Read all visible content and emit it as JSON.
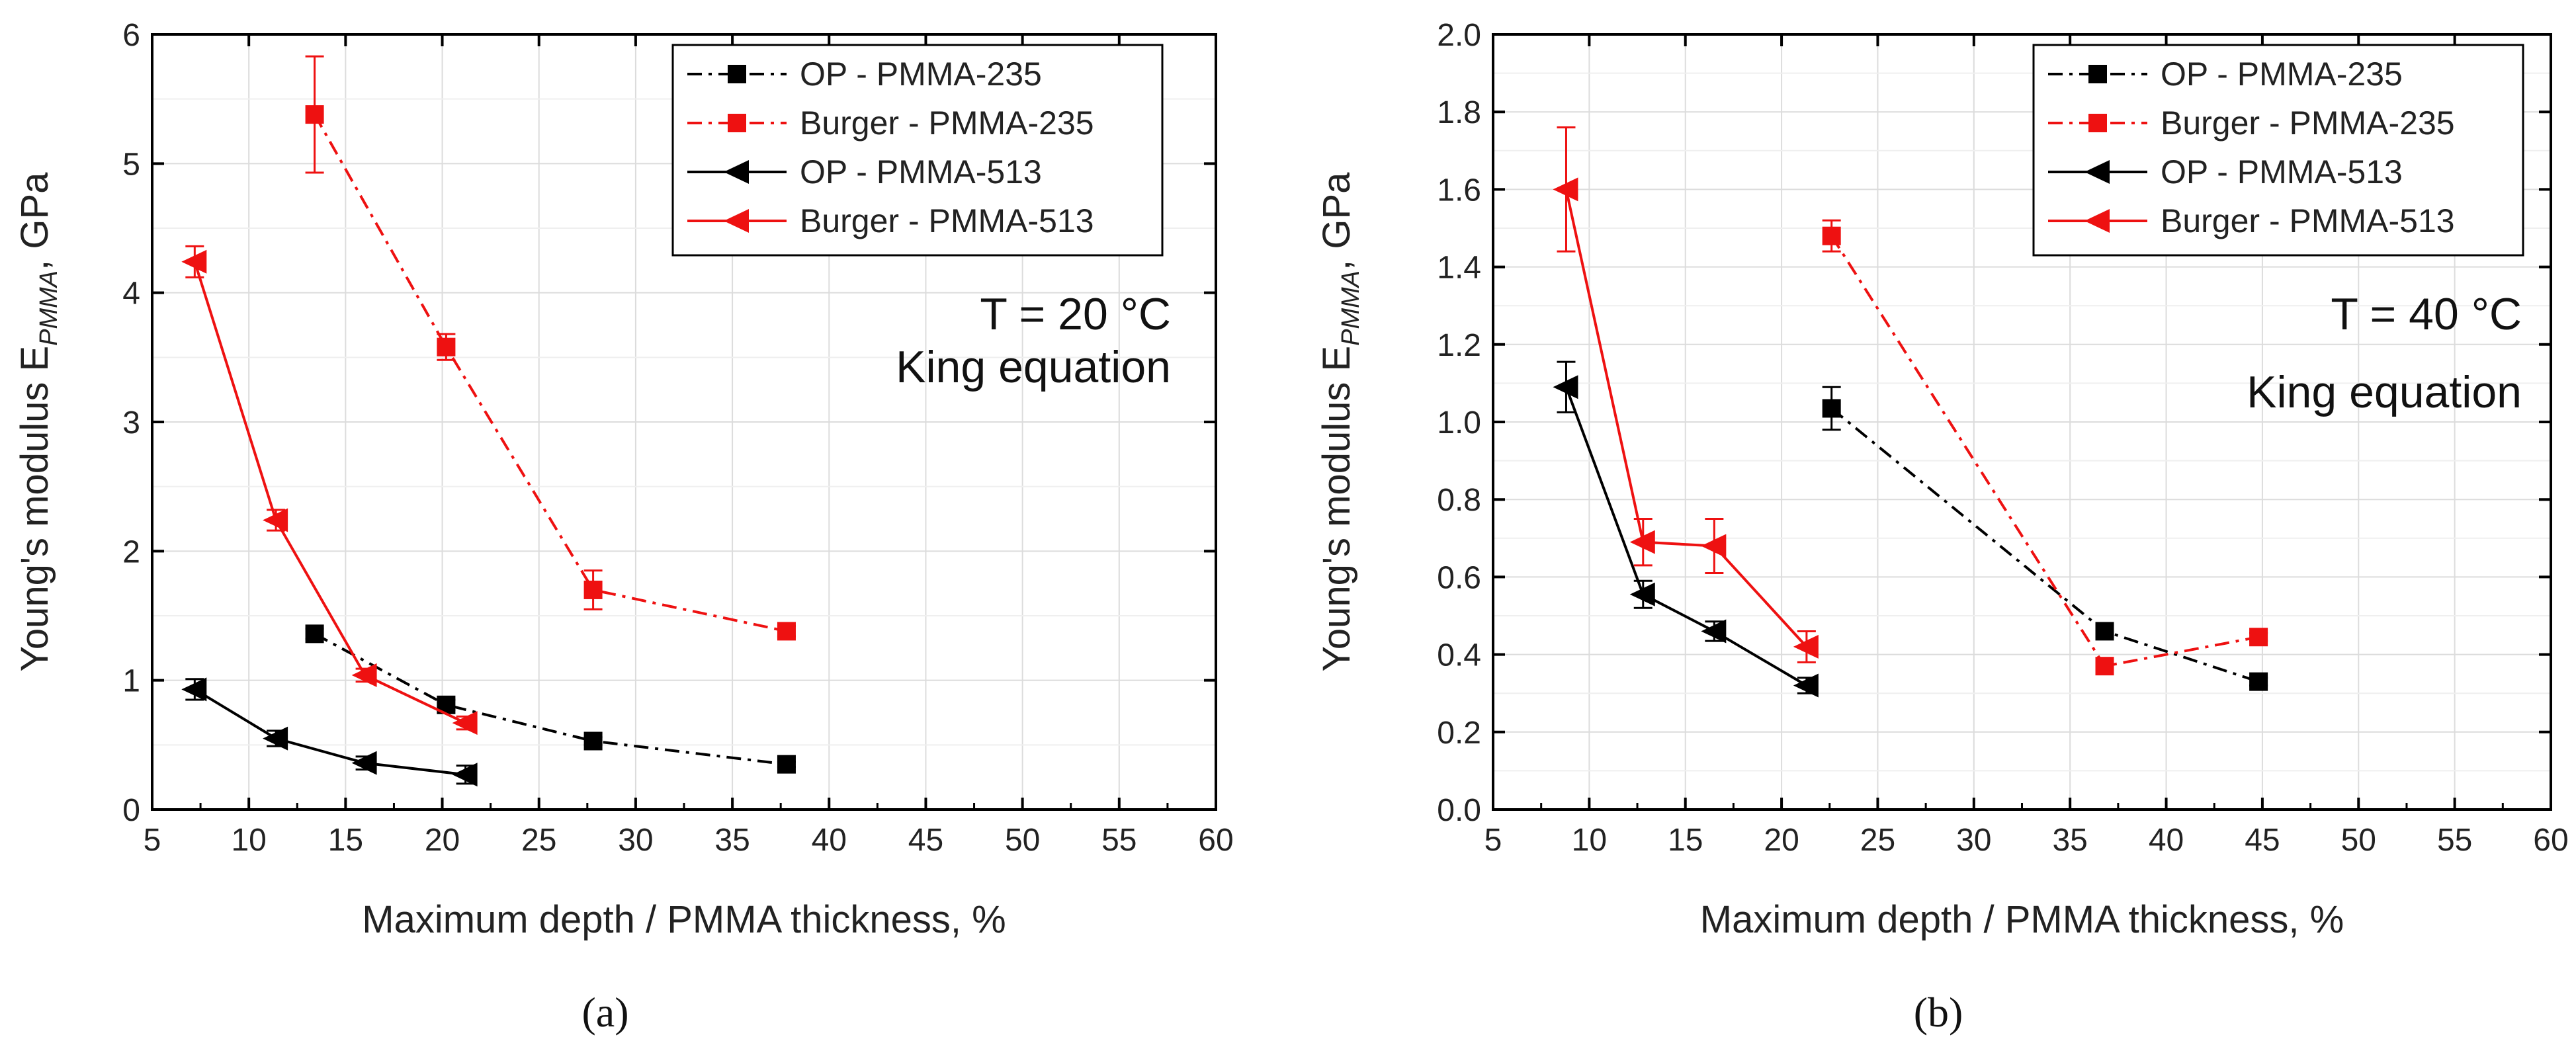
{
  "figure": {
    "panel_labels": [
      "(a)",
      "(b)"
    ]
  },
  "chart_data": [
    {
      "type": "line",
      "panel": "(a)",
      "xlabel": "Maximum depth / PMMA thickness, %",
      "ylabel": "Young's modulus E",
      "ylabel_sub": "PMMA",
      "ylabel_unit": ", GPa",
      "xlim": [
        5,
        60
      ],
      "ylim": [
        0,
        6
      ],
      "xticks": [
        5,
        10,
        15,
        20,
        25,
        30,
        35,
        40,
        45,
        50,
        55,
        60
      ],
      "yticks": [
        0,
        1,
        2,
        3,
        4,
        5,
        6
      ],
      "ytick_labels": [
        "0",
        "1",
        "2",
        "3",
        "4",
        "5",
        "6"
      ],
      "grid": true,
      "legend_position": "top-right",
      "annotations": [
        "T = 20 °C",
        "King equation"
      ],
      "series": [
        {
          "name": "OP - PMMA-235",
          "color": "#000000",
          "marker": "square",
          "dash": "dashdot",
          "x": [
            13.4,
            20.2,
            27.8,
            37.8
          ],
          "y": [
            1.36,
            0.81,
            0.53,
            0.35
          ],
          "err": [
            0.04,
            0.04,
            0.03,
            0.02
          ]
        },
        {
          "name": "Burger - PMMA-235",
          "color": "#ee1111",
          "marker": "square",
          "dash": "dashdot",
          "x": [
            13.4,
            20.2,
            27.8,
            37.8
          ],
          "y": [
            5.38,
            3.58,
            1.7,
            1.38
          ],
          "err": [
            0.45,
            0.1,
            0.15,
            0.04
          ]
        },
        {
          "name": "OP - PMMA-513",
          "color": "#000000",
          "marker": "triangle-left",
          "dash": "solid",
          "x": [
            7.2,
            11.4,
            16.0,
            21.2
          ],
          "y": [
            0.93,
            0.55,
            0.36,
            0.27
          ],
          "err": [
            0.08,
            0.06,
            0.05,
            0.07
          ]
        },
        {
          "name": "Burger - PMMA-513",
          "color": "#ee1111",
          "marker": "triangle-left",
          "dash": "solid",
          "x": [
            7.2,
            11.4,
            16.0,
            21.2
          ],
          "y": [
            4.24,
            2.24,
            1.04,
            0.67
          ],
          "err": [
            0.12,
            0.08,
            0.05,
            0.05
          ]
        }
      ]
    },
    {
      "type": "line",
      "panel": "(b)",
      "xlabel": "Maximum depth / PMMA thickness, %",
      "ylabel": "Young's modulus E",
      "ylabel_sub": "PMMA",
      "ylabel_unit": ", GPa",
      "xlim": [
        5,
        60
      ],
      "ylim": [
        0,
        2.0
      ],
      "xticks": [
        5,
        10,
        15,
        20,
        25,
        30,
        35,
        40,
        45,
        50,
        55,
        60
      ],
      "yticks": [
        0,
        0.2,
        0.4,
        0.6,
        0.8,
        1.0,
        1.2,
        1.4,
        1.6,
        1.8,
        2.0
      ],
      "ytick_labels": [
        "0.0",
        "0.2",
        "0.4",
        "0.6",
        "0.8",
        "1.0",
        "1.2",
        "1.4",
        "1.6",
        "1.8",
        "2.0"
      ],
      "grid": true,
      "legend_position": "top-right",
      "annotations": [
        "T = 40 °C",
        "King equation"
      ],
      "series": [
        {
          "name": "OP - PMMA-235",
          "color": "#000000",
          "marker": "square",
          "dash": "dashdot",
          "x": [
            22.6,
            36.8,
            44.8
          ],
          "y": [
            1.035,
            0.46,
            0.33
          ],
          "err": [
            0.055,
            0.015,
            0.01
          ]
        },
        {
          "name": "Burger - PMMA-235",
          "color": "#ee1111",
          "marker": "square",
          "dash": "dashdot",
          "x": [
            22.6,
            36.8,
            44.8
          ],
          "y": [
            1.48,
            0.37,
            0.445
          ],
          "err": [
            0.04,
            0.01,
            0.01
          ]
        },
        {
          "name": "OP - PMMA-513",
          "color": "#000000",
          "marker": "triangle-left",
          "dash": "solid",
          "x": [
            8.8,
            12.8,
            16.5,
            21.3
          ],
          "y": [
            1.09,
            0.555,
            0.46,
            0.32
          ],
          "err": [
            0.065,
            0.035,
            0.025,
            0.02
          ]
        },
        {
          "name": "Burger - PMMA-513",
          "color": "#ee1111",
          "marker": "triangle-left",
          "dash": "solid",
          "x": [
            8.8,
            12.8,
            16.5,
            21.3
          ],
          "y": [
            1.6,
            0.69,
            0.68,
            0.42
          ],
          "err": [
            0.16,
            0.06,
            0.07,
            0.04
          ]
        }
      ]
    }
  ]
}
